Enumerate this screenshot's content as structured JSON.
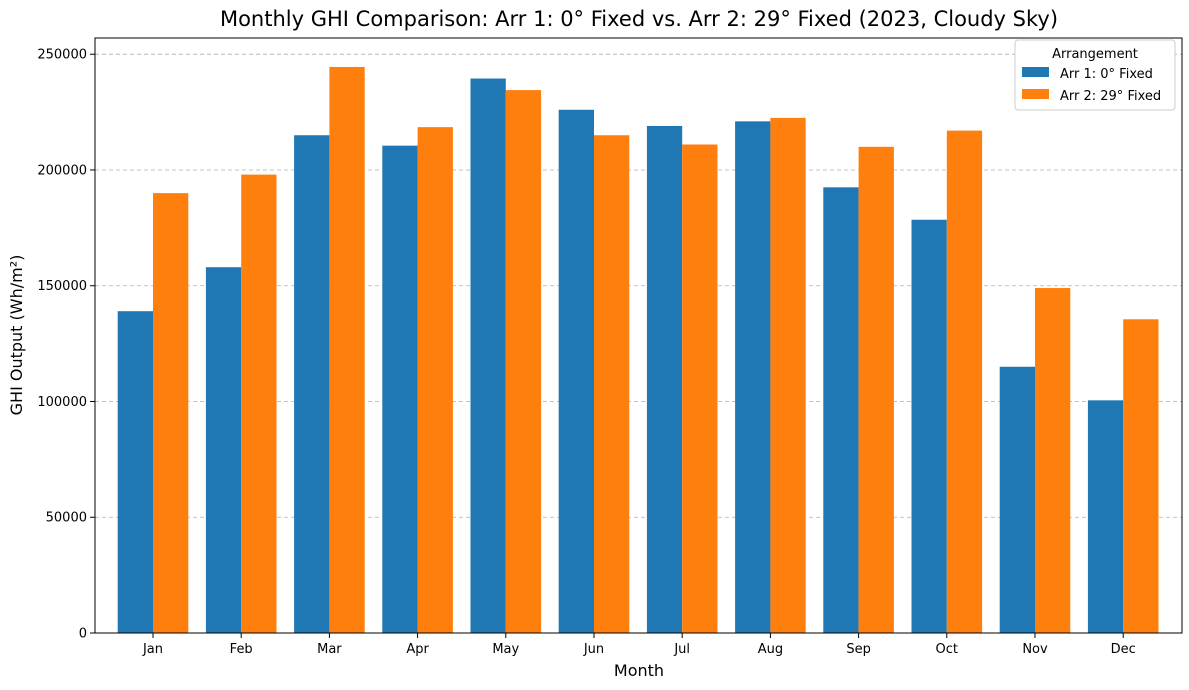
{
  "chart_data": {
    "type": "bar",
    "title": "Monthly GHI Comparison: Arr 1: 0° Fixed vs. Arr 2: 29° Fixed (2023, Cloudy Sky)",
    "xlabel": "Month",
    "ylabel": "GHI Output (Wh/m²)",
    "categories": [
      "Jan",
      "Feb",
      "Mar",
      "Apr",
      "May",
      "Jun",
      "Jul",
      "Aug",
      "Sep",
      "Oct",
      "Nov",
      "Dec"
    ],
    "series": [
      {
        "name": "Arr 1: 0° Fixed",
        "color": "#1f77b4",
        "values": [
          139000,
          158000,
          215000,
          210500,
          239500,
          226000,
          219000,
          221000,
          192500,
          178500,
          115000,
          100500
        ]
      },
      {
        "name": "Arr 2: 29° Fixed",
        "color": "#ff7f0e",
        "values": [
          190000,
          198000,
          244500,
          218500,
          234500,
          215000,
          211000,
          222500,
          210000,
          217000,
          149000,
          135500
        ]
      }
    ],
    "ylim": [
      0,
      257000
    ],
    "yticks": [
      0,
      50000,
      100000,
      150000,
      200000,
      250000
    ],
    "grid": "horizontal-dashed",
    "legend": {
      "title": "Arrangement",
      "position": "top-right"
    }
  }
}
